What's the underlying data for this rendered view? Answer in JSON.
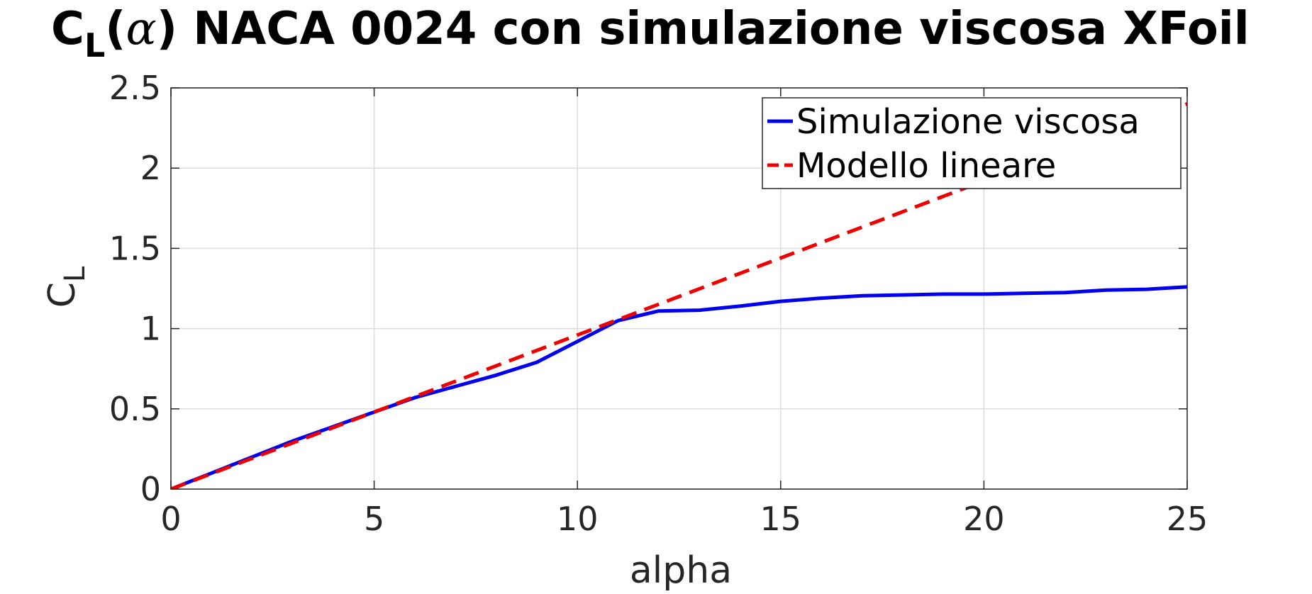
{
  "chart_data": {
    "type": "line",
    "title": {
      "prefix": "C",
      "subscript": "L",
      "paren_open": "(",
      "symbol": "α",
      "suffix": ") NACA 0024 con simulazione viscosa XFoil"
    },
    "xlabel": "alpha",
    "ylabel": {
      "main": "C",
      "subscript": "L"
    },
    "xlim": [
      0,
      25
    ],
    "ylim": [
      0,
      2.5
    ],
    "xticks": [
      0,
      5,
      10,
      15,
      20,
      25
    ],
    "xtick_labels": [
      "0",
      "5",
      "10",
      "15",
      "20",
      "25"
    ],
    "yticks": [
      0,
      0.5,
      1,
      1.5,
      2,
      2.5
    ],
    "ytick_labels": [
      "0",
      "0.5",
      "1",
      "1.5",
      "2",
      "2.5"
    ],
    "grid": true,
    "legend_position": "top-right",
    "series": [
      {
        "name": "Simulazione viscosa",
        "color": "#0000ee",
        "style": "solid",
        "x": [
          0,
          1,
          2,
          3,
          4,
          5,
          6,
          7,
          8,
          9,
          10,
          11,
          12,
          13,
          14,
          15,
          16,
          17,
          18,
          19,
          20,
          21,
          22,
          23,
          24,
          25
        ],
        "y": [
          0,
          0.1,
          0.2,
          0.3,
          0.39,
          0.48,
          0.57,
          0.64,
          0.71,
          0.79,
          0.92,
          1.05,
          1.11,
          1.115,
          1.14,
          1.17,
          1.19,
          1.205,
          1.21,
          1.215,
          1.215,
          1.22,
          1.225,
          1.24,
          1.245,
          1.26
        ]
      },
      {
        "name": "Modello lineare",
        "color": "#ee0000",
        "style": "dashed",
        "x": [
          0,
          25
        ],
        "y": [
          0,
          2.4
        ]
      }
    ]
  }
}
